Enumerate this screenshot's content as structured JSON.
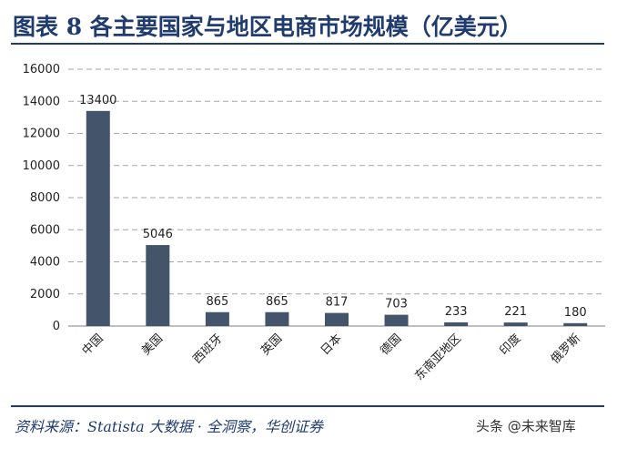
{
  "header": {
    "title": "图表 8   各主要国家与地区电商市场规模（亿美元）"
  },
  "footer": {
    "source": "资料来源：Statista 大数据 · 全洞察，华创证券",
    "watermark": "头条 @未来智库"
  },
  "colors": {
    "bar": "#44546a",
    "rule": "#1f3b6f",
    "grid": "#a6a6a6"
  },
  "chart_data": {
    "type": "bar",
    "title": "各主要国家与地区电商市场规模（亿美元）",
    "categories": [
      "中国",
      "美国",
      "西班牙",
      "英国",
      "日本",
      "德国",
      "东南亚地区",
      "印度",
      "俄罗斯"
    ],
    "values": [
      13400,
      5046,
      865,
      865,
      817,
      703,
      233,
      221,
      180
    ],
    "data_labels": [
      "13400",
      "5046",
      "865",
      "865",
      "817",
      "703",
      "233",
      "221",
      "180"
    ],
    "xlabel": "",
    "ylabel": "",
    "ylim": [
      0,
      16000
    ],
    "yticks": [
      0,
      2000,
      4000,
      6000,
      8000,
      10000,
      12000,
      14000,
      16000
    ],
    "grid": true,
    "legend": "none"
  }
}
